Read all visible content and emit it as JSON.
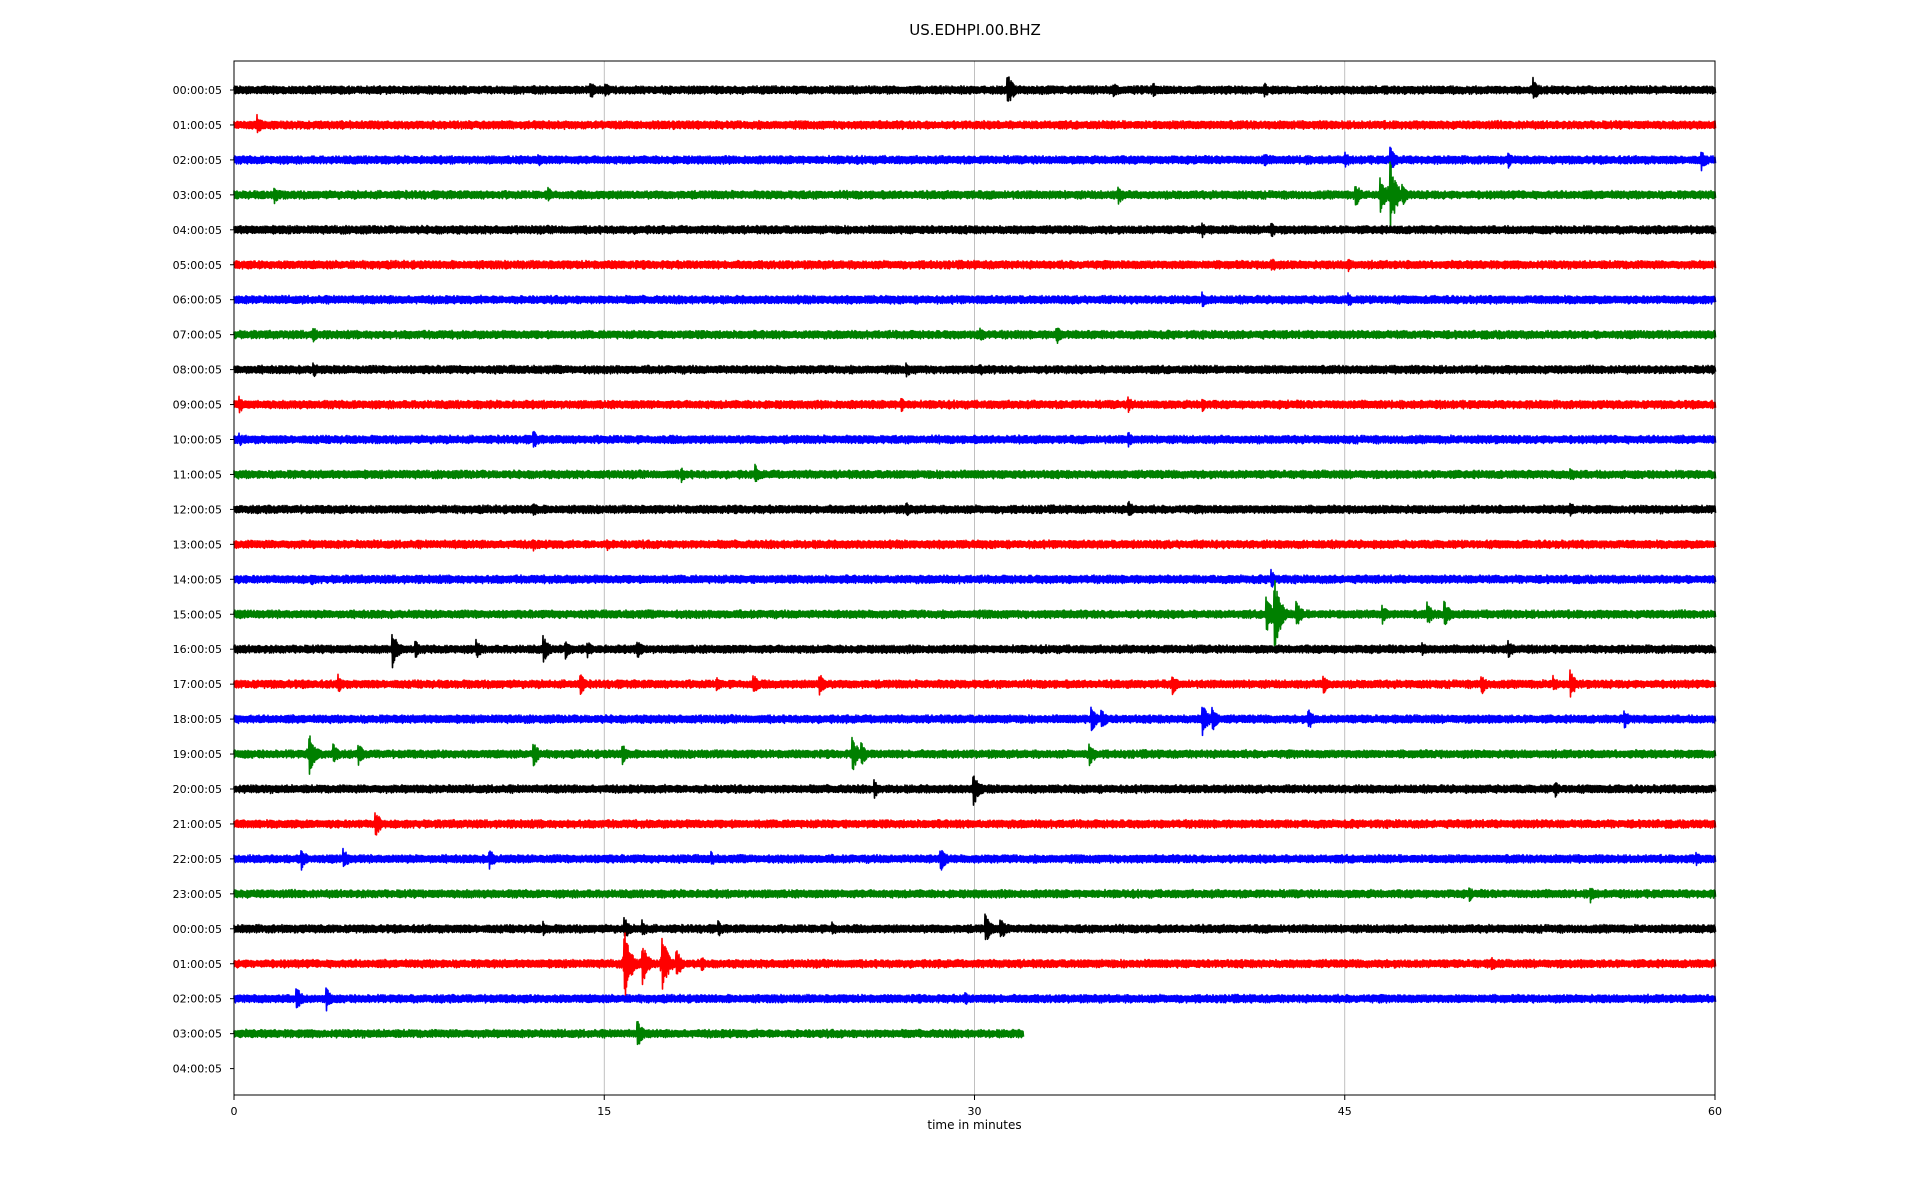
{
  "chart_data": {
    "type": "line",
    "title": "US.EDHPI.00.BHZ",
    "xlabel": "time in minutes",
    "ylabel": "",
    "xlim": [
      0,
      60
    ],
    "x_ticks": [
      0,
      15,
      30,
      45,
      60
    ],
    "x_tick_labels": [
      "0",
      "15",
      "30",
      "45",
      "60"
    ],
    "grid": "vertical gridlines at 15, 30, 45",
    "trace_colors": [
      "#000000",
      "#ff0000",
      "#0000ff",
      "#008000"
    ],
    "rows": [
      {
        "label": "00:00:05",
        "color": "#000000",
        "end_minute": 60,
        "events": [
          {
            "t": 14.4,
            "amp": 0.3
          },
          {
            "t": 15.0,
            "amp": 0.25
          },
          {
            "t": 31.3,
            "amp": 0.55
          },
          {
            "t": 35.6,
            "amp": 0.25
          },
          {
            "t": 37.2,
            "amp": 0.25
          },
          {
            "t": 41.7,
            "amp": 0.25
          },
          {
            "t": 52.6,
            "amp": 0.4
          }
        ]
      },
      {
        "label": "01:00:05",
        "color": "#ff0000",
        "end_minute": 60,
        "events": [
          {
            "t": 0.9,
            "amp": 0.35
          }
        ]
      },
      {
        "label": "02:00:05",
        "color": "#0000ff",
        "end_minute": 60,
        "events": [
          {
            "t": 12.3,
            "amp": 0.2
          },
          {
            "t": 41.7,
            "amp": 0.25
          },
          {
            "t": 43.4,
            "amp": 0.2
          },
          {
            "t": 45.0,
            "amp": 0.25
          },
          {
            "t": 46.8,
            "amp": 0.45
          },
          {
            "t": 51.6,
            "amp": 0.25
          },
          {
            "t": 59.4,
            "amp": 0.35
          }
        ]
      },
      {
        "label": "03:00:05",
        "color": "#008000",
        "end_minute": 60,
        "events": [
          {
            "t": 1.6,
            "amp": 0.3
          },
          {
            "t": 12.7,
            "amp": 0.25
          },
          {
            "t": 35.8,
            "amp": 0.3
          },
          {
            "t": 45.4,
            "amp": 0.4
          },
          {
            "t": 46.4,
            "amp": 0.6
          },
          {
            "t": 46.8,
            "amp": 1.2
          },
          {
            "t": 47.3,
            "amp": 0.35
          }
        ]
      },
      {
        "label": "04:00:05",
        "color": "#000000",
        "end_minute": 60,
        "events": [
          {
            "t": 39.2,
            "amp": 0.25
          },
          {
            "t": 42.0,
            "amp": 0.25
          }
        ]
      },
      {
        "label": "05:00:05",
        "color": "#ff0000",
        "end_minute": 60,
        "events": [
          {
            "t": 42.0,
            "amp": 0.25
          },
          {
            "t": 45.1,
            "amp": 0.25
          }
        ]
      },
      {
        "label": "06:00:05",
        "color": "#0000ff",
        "end_minute": 60,
        "events": [
          {
            "t": 39.2,
            "amp": 0.25
          },
          {
            "t": 45.1,
            "amp": 0.25
          }
        ]
      },
      {
        "label": "07:00:05",
        "color": "#008000",
        "end_minute": 60,
        "events": [
          {
            "t": 3.2,
            "amp": 0.25
          },
          {
            "t": 30.2,
            "amp": 0.25
          },
          {
            "t": 33.3,
            "amp": 0.3
          }
        ]
      },
      {
        "label": "08:00:05",
        "color": "#000000",
        "end_minute": 60,
        "events": [
          {
            "t": 3.2,
            "amp": 0.25
          },
          {
            "t": 27.2,
            "amp": 0.25
          },
          {
            "t": 30.2,
            "amp": 0.2
          }
        ]
      },
      {
        "label": "09:00:05",
        "color": "#ff0000",
        "end_minute": 60,
        "events": [
          {
            "t": 0.2,
            "amp": 0.25
          },
          {
            "t": 27.0,
            "amp": 0.25
          },
          {
            "t": 36.2,
            "amp": 0.25
          },
          {
            "t": 39.2,
            "amp": 0.25
          }
        ]
      },
      {
        "label": "10:00:05",
        "color": "#0000ff",
        "end_minute": 60,
        "events": [
          {
            "t": 0.2,
            "amp": 0.2
          },
          {
            "t": 12.1,
            "amp": 0.3
          },
          {
            "t": 36.2,
            "amp": 0.25
          }
        ]
      },
      {
        "label": "11:00:05",
        "color": "#008000",
        "end_minute": 60,
        "events": [
          {
            "t": 18.1,
            "amp": 0.25
          },
          {
            "t": 21.1,
            "amp": 0.3
          },
          {
            "t": 54.1,
            "amp": 0.25
          }
        ]
      },
      {
        "label": "12:00:05",
        "color": "#000000",
        "end_minute": 60,
        "events": [
          {
            "t": 12.1,
            "amp": 0.25
          },
          {
            "t": 27.2,
            "amp": 0.25
          },
          {
            "t": 36.2,
            "amp": 0.3
          },
          {
            "t": 54.1,
            "amp": 0.25
          }
        ]
      },
      {
        "label": "13:00:05",
        "color": "#ff0000",
        "end_minute": 60,
        "events": [
          {
            "t": 12.1,
            "amp": 0.2
          },
          {
            "t": 15.1,
            "amp": 0.2
          }
        ]
      },
      {
        "label": "14:00:05",
        "color": "#0000ff",
        "end_minute": 60,
        "events": [
          {
            "t": 3.1,
            "amp": 0.2
          },
          {
            "t": 42.0,
            "amp": 0.3
          }
        ]
      },
      {
        "label": "15:00:05",
        "color": "#008000",
        "end_minute": 60,
        "events": [
          {
            "t": 41.8,
            "amp": 0.6
          },
          {
            "t": 42.1,
            "amp": 1.35
          },
          {
            "t": 43.0,
            "amp": 0.45
          },
          {
            "t": 46.5,
            "amp": 0.3
          },
          {
            "t": 48.3,
            "amp": 0.4
          },
          {
            "t": 49.0,
            "amp": 0.45
          }
        ]
      },
      {
        "label": "16:00:05",
        "color": "#000000",
        "end_minute": 60,
        "events": [
          {
            "t": 6.4,
            "amp": 0.55
          },
          {
            "t": 7.3,
            "amp": 0.3
          },
          {
            "t": 9.8,
            "amp": 0.3
          },
          {
            "t": 12.5,
            "amp": 0.45
          },
          {
            "t": 13.4,
            "amp": 0.3
          },
          {
            "t": 14.3,
            "amp": 0.25
          },
          {
            "t": 16.3,
            "amp": 0.35
          },
          {
            "t": 48.1,
            "amp": 0.25
          },
          {
            "t": 51.6,
            "amp": 0.3
          }
        ]
      },
      {
        "label": "17:00:05",
        "color": "#ff0000",
        "end_minute": 60,
        "events": [
          {
            "t": 4.2,
            "amp": 0.3
          },
          {
            "t": 14.0,
            "amp": 0.35
          },
          {
            "t": 19.5,
            "amp": 0.25
          },
          {
            "t": 21.0,
            "amp": 0.35
          },
          {
            "t": 23.7,
            "amp": 0.35
          },
          {
            "t": 38.0,
            "amp": 0.3
          },
          {
            "t": 44.1,
            "amp": 0.35
          },
          {
            "t": 50.5,
            "amp": 0.35
          },
          {
            "t": 53.4,
            "amp": 0.3
          },
          {
            "t": 54.1,
            "amp": 0.45
          }
        ]
      },
      {
        "label": "18:00:05",
        "color": "#0000ff",
        "end_minute": 60,
        "events": [
          {
            "t": 34.7,
            "amp": 0.4
          },
          {
            "t": 35.1,
            "amp": 0.35
          },
          {
            "t": 39.2,
            "amp": 0.55
          },
          {
            "t": 39.6,
            "amp": 0.4
          },
          {
            "t": 43.5,
            "amp": 0.35
          },
          {
            "t": 56.3,
            "amp": 0.3
          }
        ]
      },
      {
        "label": "19:00:05",
        "color": "#008000",
        "end_minute": 60,
        "events": [
          {
            "t": 3.0,
            "amp": 0.75
          },
          {
            "t": 4.0,
            "amp": 0.35
          },
          {
            "t": 5.0,
            "amp": 0.35
          },
          {
            "t": 12.1,
            "amp": 0.4
          },
          {
            "t": 15.7,
            "amp": 0.35
          },
          {
            "t": 25.0,
            "amp": 0.6
          },
          {
            "t": 25.4,
            "amp": 0.35
          },
          {
            "t": 34.6,
            "amp": 0.45
          }
        ]
      },
      {
        "label": "20:00:05",
        "color": "#000000",
        "end_minute": 60,
        "events": [
          {
            "t": 25.9,
            "amp": 0.3
          },
          {
            "t": 29.9,
            "amp": 0.6
          },
          {
            "t": 53.5,
            "amp": 0.25
          }
        ]
      },
      {
        "label": "21:00:05",
        "color": "#ff0000",
        "end_minute": 60,
        "events": [
          {
            "t": 5.7,
            "amp": 0.45
          }
        ]
      },
      {
        "label": "22:00:05",
        "color": "#0000ff",
        "end_minute": 60,
        "events": [
          {
            "t": 2.7,
            "amp": 0.35
          },
          {
            "t": 4.4,
            "amp": 0.35
          },
          {
            "t": 10.3,
            "amp": 0.35
          },
          {
            "t": 19.3,
            "amp": 0.25
          },
          {
            "t": 28.6,
            "amp": 0.4
          },
          {
            "t": 59.2,
            "amp": 0.25
          }
        ]
      },
      {
        "label": "23:00:05",
        "color": "#008000",
        "end_minute": 60,
        "events": [
          {
            "t": 50.0,
            "amp": 0.25
          },
          {
            "t": 54.9,
            "amp": 0.3
          }
        ]
      },
      {
        "label": "00:00:05",
        "color": "#000000",
        "end_minute": 60,
        "events": [
          {
            "t": 12.5,
            "amp": 0.25
          },
          {
            "t": 15.8,
            "amp": 0.35
          },
          {
            "t": 16.5,
            "amp": 0.3
          },
          {
            "t": 19.6,
            "amp": 0.25
          },
          {
            "t": 24.2,
            "amp": 0.25
          },
          {
            "t": 30.4,
            "amp": 0.5
          },
          {
            "t": 31.0,
            "amp": 0.4
          }
        ]
      },
      {
        "label": "01:00:05",
        "color": "#ff0000",
        "end_minute": 60,
        "events": [
          {
            "t": 15.8,
            "amp": 1.1
          },
          {
            "t": 16.5,
            "amp": 0.7
          },
          {
            "t": 17.3,
            "amp": 1.0
          },
          {
            "t": 17.9,
            "amp": 0.45
          },
          {
            "t": 18.9,
            "amp": 0.25
          },
          {
            "t": 50.9,
            "amp": 0.25
          }
        ]
      },
      {
        "label": "02:00:05",
        "color": "#0000ff",
        "end_minute": 60,
        "events": [
          {
            "t": 2.5,
            "amp": 0.4
          },
          {
            "t": 3.7,
            "amp": 0.4
          },
          {
            "t": 29.6,
            "amp": 0.2
          }
        ]
      },
      {
        "label": "03:00:05",
        "color": "#008000",
        "end_minute": 32.0,
        "events": [
          {
            "t": 16.3,
            "amp": 0.45
          }
        ]
      },
      {
        "label": "04:00:05",
        "color": "#000000",
        "end_minute": 0,
        "events": []
      }
    ]
  }
}
